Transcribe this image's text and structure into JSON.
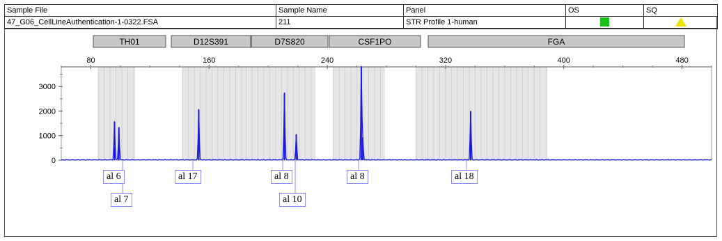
{
  "header": {
    "columns": [
      "Sample File",
      "Sample Name",
      "Panel",
      "OS",
      "SQ"
    ],
    "row": {
      "sample_file": "47_G06_CellLineAuthentication-1-0322.FSA",
      "sample_name": "211",
      "panel": "STR Profile 1-human",
      "os_color": "#19c319",
      "sq_color": "#f2e200"
    }
  },
  "markers": [
    "TH01",
    "D12S391",
    "D7S820",
    "CSF1PO",
    "FGA"
  ],
  "chart_data": {
    "type": "line",
    "x_ticks": [
      "80",
      "160",
      "240",
      "320",
      "400",
      "480"
    ],
    "y_ticks": [
      "3000",
      "2000",
      "1000",
      "0"
    ],
    "xlim": [
      60,
      500
    ],
    "ylim": [
      0,
      3800
    ],
    "series_color": "#1a1adf",
    "peaks": [
      {
        "x": 96,
        "height": 1560
      },
      {
        "x": 99,
        "height": 1340
      },
      {
        "x": 153,
        "height": 2060
      },
      {
        "x": 211,
        "height": 2730
      },
      {
        "x": 219,
        "height": 1040
      },
      {
        "x": 263,
        "height": 3800
      },
      {
        "x": 264,
        "height": 930
      },
      {
        "x": 337,
        "height": 1980
      }
    ]
  },
  "alleles": [
    {
      "label": "al 6"
    },
    {
      "label": "al 7"
    },
    {
      "label": "al 17"
    },
    {
      "label": "al 8"
    },
    {
      "label": "al 10"
    },
    {
      "label": "al 8"
    },
    {
      "label": "al 18"
    }
  ]
}
